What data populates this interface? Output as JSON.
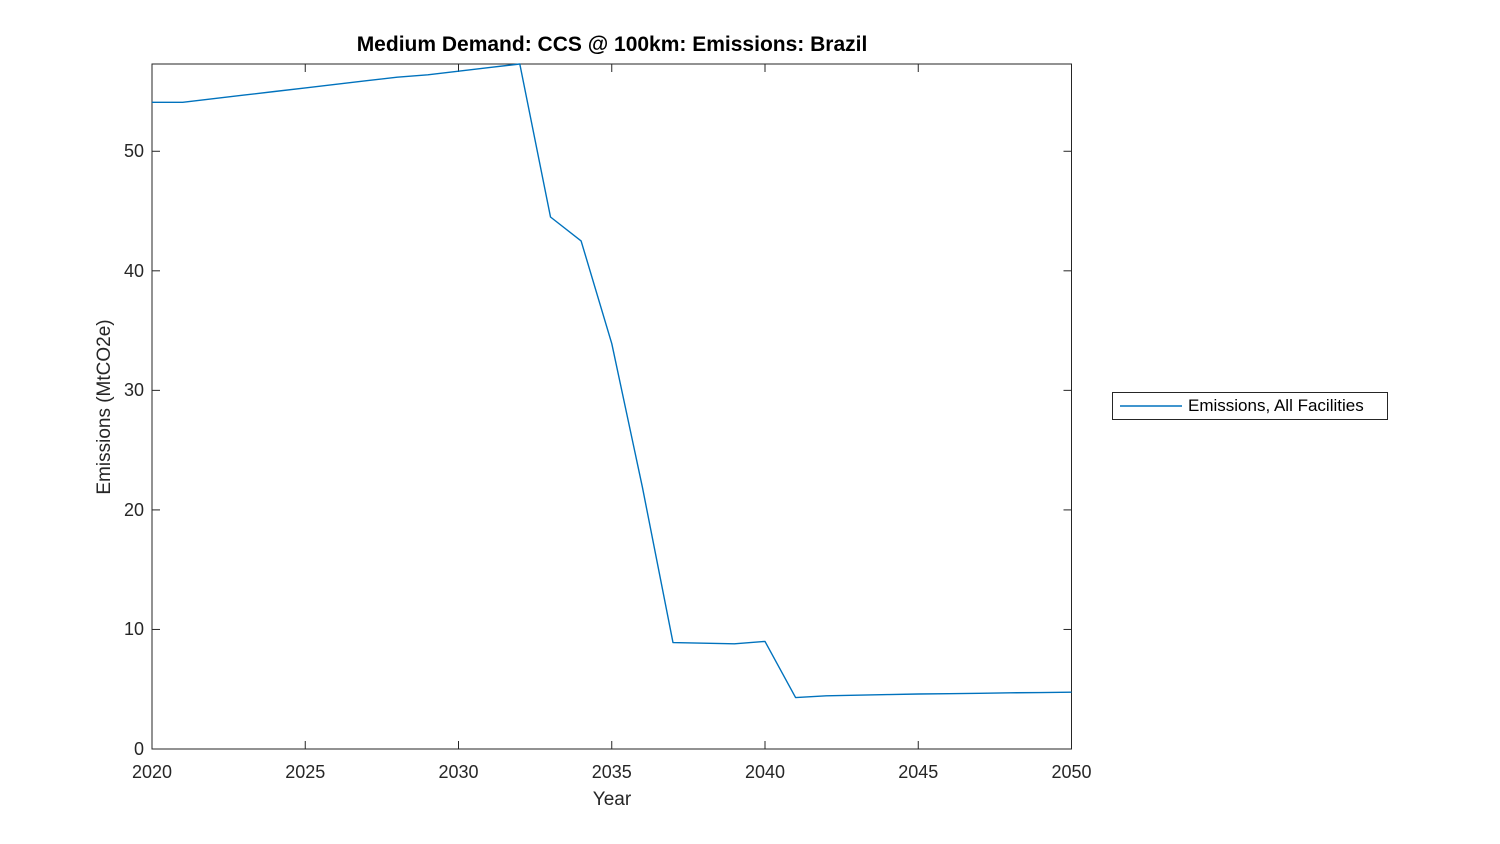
{
  "window": {
    "background_color": "#ffffff"
  },
  "colors": {
    "axis": "#262626",
    "tick_label": "#262626",
    "title": "#000000",
    "line": "#0072BD",
    "legend_border": "#262626",
    "background": "#ffffff"
  },
  "chart_data": {
    "type": "line",
    "title": "Medium Demand: CCS @ 100km: Emissions: Brazil",
    "xlabel": "Year",
    "ylabel": "Emissions (MtCO2e)",
    "xlim": [
      2020,
      2050
    ],
    "ylim": [
      0,
      57.3
    ],
    "xticks": [
      2020,
      2025,
      2030,
      2035,
      2040,
      2045,
      2050
    ],
    "yticks": [
      0,
      10,
      20,
      30,
      40,
      50
    ],
    "grid": false,
    "box": true,
    "tick_direction": "in",
    "legend_position": "right-outside",
    "x": [
      2020,
      2021,
      2022,
      2023,
      2024,
      2025,
      2026,
      2027,
      2028,
      2029,
      2030,
      2031,
      2032,
      2033,
      2034,
      2035,
      2036,
      2037,
      2038,
      2039,
      2040,
      2041,
      2042,
      2043,
      2044,
      2045,
      2046,
      2047,
      2048,
      2049,
      2050
    ],
    "series": [
      {
        "name": "Emissions, All Facilities",
        "color": "#0072BD",
        "values": [
          54.1,
          54.1,
          54.4,
          54.7,
          55.0,
          55.3,
          55.6,
          55.9,
          56.2,
          56.4,
          56.7,
          57.0,
          57.3,
          44.5,
          42.5,
          33.9,
          21.9,
          8.9,
          8.85,
          8.8,
          9.0,
          4.3,
          4.45,
          4.5,
          4.55,
          4.6,
          4.63,
          4.66,
          4.7,
          4.72,
          4.75
        ]
      }
    ]
  }
}
